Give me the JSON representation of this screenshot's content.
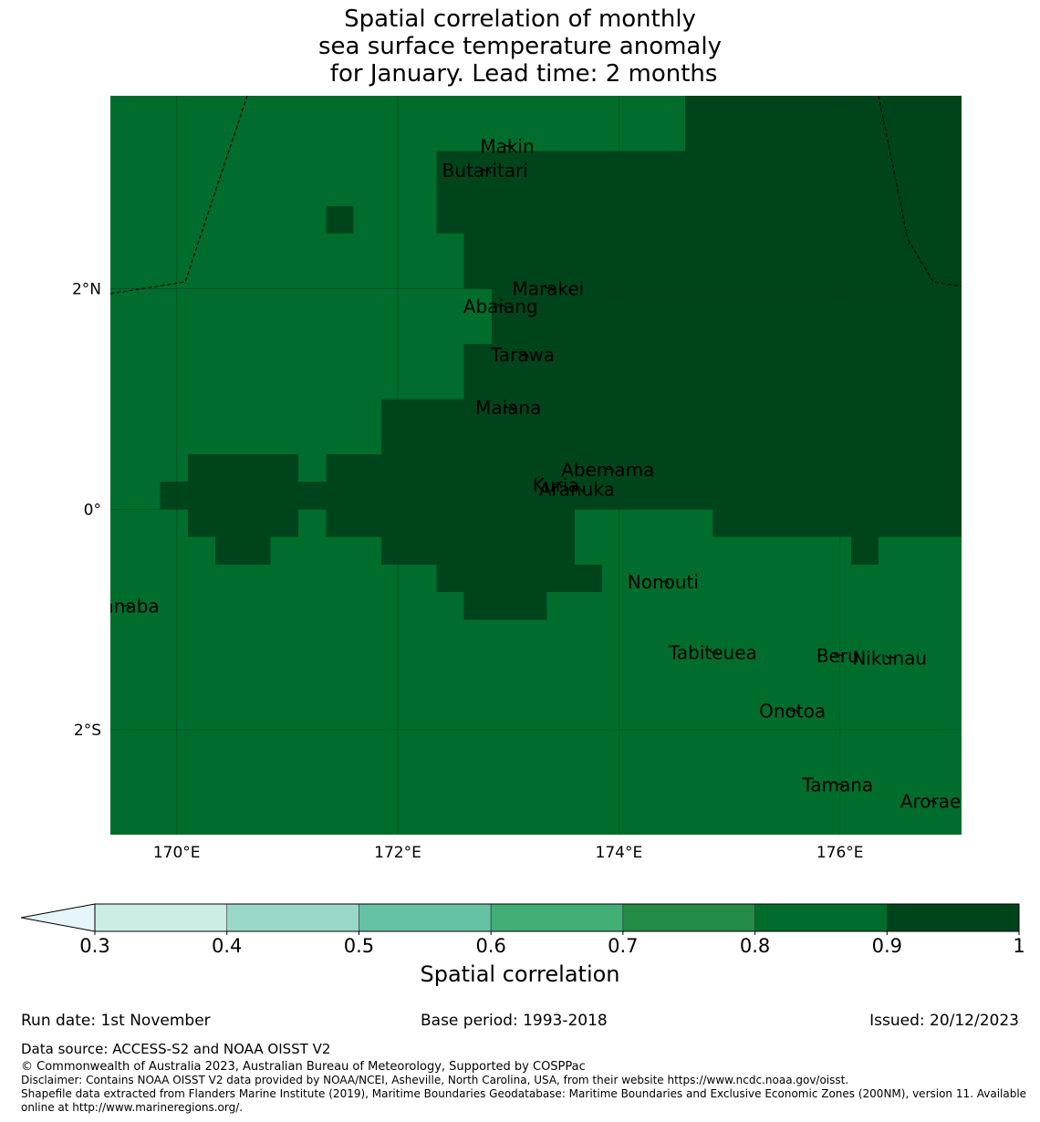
{
  "title": {
    "line1": "Spatial correlation of monthly",
    "line2": "sea surface temperature anomaly",
    "line3": " for January. Lead time: 2 months"
  },
  "map": {
    "lon_range": [
      169.4,
      177.1
    ],
    "lat_range": [
      -2.95,
      3.75
    ],
    "lon_ticks": [
      {
        "value": 170,
        "label": "170°E"
      },
      {
        "value": 172,
        "label": "172°E"
      },
      {
        "value": 174,
        "label": "174°E"
      },
      {
        "value": 176,
        "label": "176°E"
      }
    ],
    "lat_ticks": [
      {
        "value": 2,
        "label": "2°N"
      },
      {
        "value": 0,
        "label": "0°"
      },
      {
        "value": -2,
        "label": "2°S"
      }
    ],
    "grid_resolution_deg": 0.25,
    "background_value": 0.85,
    "high_cells_comment": "cells with correlation 0.9-1.0 as [lon_min, lon_max, lat_min, lat_max]",
    "high_value": 0.95,
    "high_cells": [
      [
        174.6,
        177.1,
        3.25,
        3.75
      ],
      [
        172.35,
        177.1,
        2.5,
        3.25
      ],
      [
        172.6,
        177.1,
        2.0,
        2.5
      ],
      [
        172.85,
        177.1,
        1.5,
        2.0
      ],
      [
        172.6,
        177.1,
        1.0,
        1.5
      ],
      [
        171.85,
        177.1,
        0.0,
        1.0
      ],
      [
        175.85,
        177.1,
        -0.25,
        0.0
      ],
      [
        174.85,
        175.85,
        -0.25,
        0.0
      ],
      [
        171.85,
        173.6,
        -0.5,
        0.0
      ],
      [
        172.35,
        173.85,
        -0.75,
        -0.5
      ],
      [
        172.6,
        173.35,
        -1.0,
        -0.75
      ],
      [
        176.1,
        176.35,
        -0.5,
        -0.25
      ],
      [
        171.35,
        171.6,
        2.5,
        2.75
      ],
      [
        170.1,
        171.1,
        0.25,
        0.5
      ],
      [
        169.85,
        171.35,
        0.0,
        0.25
      ],
      [
        170.1,
        171.1,
        -0.25,
        0.0
      ],
      [
        170.35,
        170.85,
        -0.5,
        -0.25
      ],
      [
        171.6,
        171.85,
        -0.25,
        0.5
      ],
      [
        171.35,
        171.6,
        -0.25,
        0.5
      ],
      [
        171.1,
        171.35,
        0.0,
        0.25
      ]
    ],
    "islands": [
      {
        "name": "Makin",
        "lon": 172.99,
        "lat": 3.29
      },
      {
        "name": "Butaritari",
        "lon": 172.79,
        "lat": 3.07
      },
      {
        "name": "Marakei",
        "lon": 173.36,
        "lat": 2.0
      },
      {
        "name": "Abaiang",
        "lon": 172.93,
        "lat": 1.84
      },
      {
        "name": "Tarawa",
        "lon": 173.13,
        "lat": 1.4
      },
      {
        "name": "Maiana",
        "lon": 173.0,
        "lat": 0.92
      },
      {
        "name": "Abemama",
        "lon": 173.9,
        "lat": 0.36
      },
      {
        "name": "Kuria",
        "lon": 173.43,
        "lat": 0.22
      },
      {
        "name": "Aranuka",
        "lon": 173.62,
        "lat": 0.18
      },
      {
        "name": "Nonouti",
        "lon": 174.4,
        "lat": -0.66
      },
      {
        "name": "Banaba",
        "lon": 169.53,
        "lat": -0.88
      },
      {
        "name": "Tabiteuea",
        "lon": 174.85,
        "lat": -1.3
      },
      {
        "name": "Beru",
        "lon": 175.98,
        "lat": -1.33
      },
      {
        "name": "Nikunau",
        "lon": 176.45,
        "lat": -1.35
      },
      {
        "name": "Onotoa",
        "lon": 175.57,
        "lat": -1.83
      },
      {
        "name": "Tamana",
        "lon": 175.98,
        "lat": -2.5
      },
      {
        "name": "Arorae",
        "lon": 176.82,
        "lat": -2.65
      }
    ]
  },
  "colorbar": {
    "label": "Spatial correlation",
    "ticks": [
      "0.3",
      "0.4",
      "0.5",
      "0.6",
      "0.7",
      "0.8",
      "0.9",
      "1"
    ],
    "under_color": "#e5f5f9",
    "colors": [
      "#ccece6",
      "#99d8c9",
      "#66c2a4",
      "#41ae76",
      "#238b45",
      "#006d2c",
      "#00441b"
    ]
  },
  "footer": {
    "run_date": "Run date: 1st November",
    "base_period": "Base period: 1993-2018",
    "issued": "Issued: 20/12/2023",
    "data_source": "Data source: ACCESS-S2 and NOAA OISST V2",
    "copyright": "© Commonwealth of Australia 2023, Australian Bureau of Meteorology, Supported by COSPPac",
    "disclaimer": "Disclaimer: Contains NOAA OISST V2 data provided by NOAA/NCEI, Asheville, North Carolina, USA, from their website https://www.ncdc.noaa.gov/oisst.",
    "shapefile_line1": "Shapefile data extracted from Flanders Marine Institute (2019), Maritime Boundaries Geodatabase: Maritime Boundaries and Exclusive Economic Zones (200NM), version 11. Available",
    "shapefile_line2": "online at http://www.marineregions.org/."
  }
}
